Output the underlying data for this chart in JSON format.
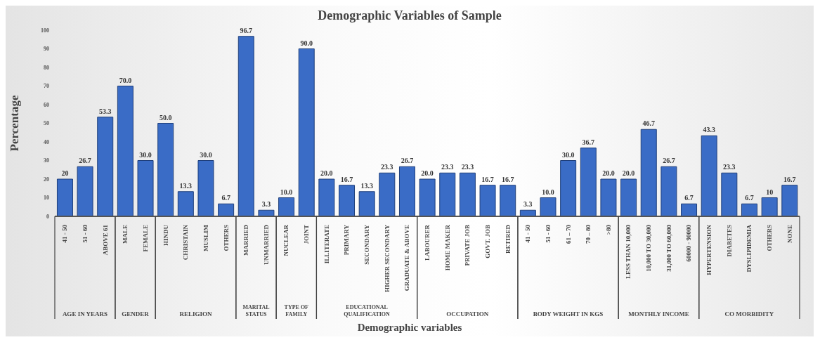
{
  "chart_data": {
    "type": "bar",
    "title": "Demographic Variables of Sample",
    "xlabel": "Demographic variables",
    "ylabel": "Percentage",
    "categories": [
      "41 - 50",
      "51 - 60",
      "ABOVE 61",
      "MALE",
      "FEMALE",
      "HINDU",
      "CHRISTAIN",
      "MUSLIM",
      "OTHERS",
      "MARRIED",
      "UNMARRIED",
      "NUCLEAR",
      "JOINT",
      "ILLITERATE",
      "PRIMARY",
      "SECONDARY",
      "HIGHER SECONDARY",
      "GRADUATE & ABOVE",
      "LABOURER",
      "HOME MAKER",
      "PRIVATE JOB",
      "GOVT. JOB",
      "RETIRED",
      "41 - 50",
      "51 - 60",
      "61 – 70",
      "70 – 80",
      ">80",
      "LESS THAN 10,000",
      "10,000 TO 30,000",
      "31,000 TO 60,000",
      "60000 - 90000",
      "HYPERTENSION",
      "DIABETES",
      "DYSLIPIDEMIA",
      "OTHERS",
      "NONE"
    ],
    "values": [
      20,
      26.7,
      53.3,
      70.0,
      30.0,
      50.0,
      13.3,
      30.0,
      6.7,
      96.7,
      3.3,
      10.0,
      90.0,
      20.0,
      16.7,
      13.3,
      23.3,
      26.7,
      20.0,
      23.3,
      23.3,
      16.7,
      16.7,
      3.3,
      10.0,
      30.0,
      36.7,
      20.0,
      20.0,
      46.7,
      26.7,
      6.7,
      43.3,
      23.3,
      6.7,
      10,
      16.7
    ],
    "value_labels": [
      "20",
      "26.7",
      "53.3",
      "70.0",
      "30.0",
      "50.0",
      "13.3",
      "30.0",
      "6.7",
      "96.7",
      "3.3",
      "10.0",
      "90.0",
      "20.0",
      "16.7",
      "13.3",
      "23.3",
      "26.7",
      "20.0",
      "23.3",
      "23.3",
      "16.7",
      "16.7",
      "3.3",
      "10.0",
      "30.0",
      "36.7",
      "20.0",
      "20.0",
      "46.7",
      "26.7",
      "6.7",
      "43.3",
      "23.3",
      "6.7",
      "10",
      "16.7"
    ],
    "color": "#3a6cc6",
    "ylim": [
      0,
      100
    ],
    "yticks": [
      0,
      10,
      20,
      30,
      40,
      50,
      60,
      70,
      80,
      90,
      100
    ],
    "grid": false,
    "legend": false,
    "annotations": [
      "AGE IN YEARS",
      "GENDER",
      "RELIGION",
      "MARITAL STATUS",
      "TYPE OF FAMILY",
      "EDUCATIONAL QUALIFICATION",
      "OCCUPATION",
      "BODY WEIGHT IN KGS",
      "MONTHLY INCOME",
      "CO MORBIDITY"
    ]
  }
}
